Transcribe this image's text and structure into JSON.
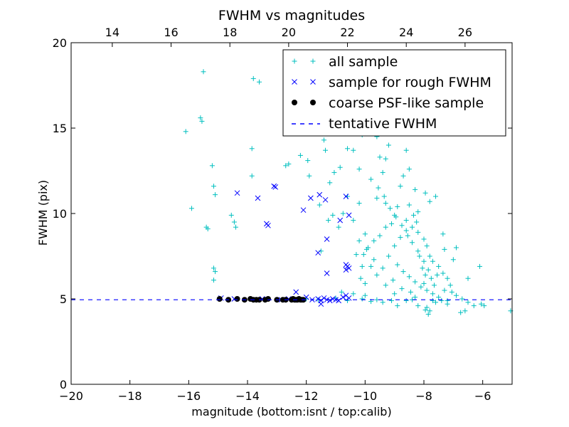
{
  "chart_data": {
    "type": "scatter",
    "title": "FWHM vs magnitudes",
    "xlabel": "magnitude (bottom:isnt / top:calib)",
    "ylabel": "FWHM (pix)",
    "xlim": [
      -20,
      -5
    ],
    "ylim": [
      0,
      20
    ],
    "top_xlim": [
      12.6,
      27.6
    ],
    "x_ticks": [
      "−20",
      "−18",
      "−16",
      "−14",
      "−12",
      "−10",
      "−8",
      "−6"
    ],
    "x_tick_values": [
      -20,
      -18,
      -16,
      -14,
      -12,
      -10,
      -8,
      -6
    ],
    "y_ticks": [
      "0",
      "5",
      "10",
      "15",
      "20"
    ],
    "y_tick_values": [
      0,
      5,
      10,
      15,
      20
    ],
    "top_x_ticks": [
      "14",
      "16",
      "18",
      "20",
      "22",
      "24",
      "26"
    ],
    "top_x_tick_values": [
      14,
      16,
      18,
      20,
      22,
      24,
      26
    ],
    "grid": false,
    "legend_position": "top-right",
    "tentative_fwhm": 4.95,
    "series": [
      {
        "name": "all sample",
        "marker": "+",
        "color": "#00bfbf",
        "points": [
          [
            -15.5,
            18.3
          ],
          [
            -15.6,
            15.6
          ],
          [
            -15.55,
            15.4
          ],
          [
            -16.1,
            14.8
          ],
          [
            -15.2,
            12.8
          ],
          [
            -15.15,
            11.6
          ],
          [
            -15.1,
            11.1
          ],
          [
            -15.9,
            10.3
          ],
          [
            -15.4,
            9.2
          ],
          [
            -15.35,
            9.1
          ],
          [
            -15.15,
            6.8
          ],
          [
            -15.1,
            6.6
          ],
          [
            -15.15,
            6.1
          ],
          [
            -14.55,
            9.9
          ],
          [
            -14.45,
            9.5
          ],
          [
            -14.4,
            9.2
          ],
          [
            -13.8,
            17.9
          ],
          [
            -13.6,
            17.7
          ],
          [
            -13.85,
            13.8
          ],
          [
            -13.85,
            12.2
          ],
          [
            -12.7,
            12.8
          ],
          [
            -12.6,
            12.9
          ],
          [
            -12.2,
            13.4
          ],
          [
            -11.95,
            13.1
          ],
          [
            -11.9,
            12.2
          ],
          [
            -11.55,
            10.5
          ],
          [
            -11.4,
            14.3
          ],
          [
            -11.35,
            13.7
          ],
          [
            -11.2,
            11.8
          ],
          [
            -11.05,
            12.4
          ],
          [
            -10.85,
            12.7
          ],
          [
            -10.6,
            13.8
          ],
          [
            -10.4,
            13.7
          ],
          [
            -10.2,
            12.6
          ],
          [
            -10.1,
            14.6
          ],
          [
            -10.2,
            10.6
          ],
          [
            -10.4,
            9.6
          ],
          [
            -10.6,
            11.0
          ],
          [
            -10.75,
            10.0
          ],
          [
            -10.9,
            9.2
          ],
          [
            -11.25,
            9.6
          ],
          [
            -11.5,
            7.8
          ],
          [
            -10.3,
            7.6
          ],
          [
            -10.1,
            6.9
          ],
          [
            -10.15,
            6.2
          ],
          [
            -10.0,
            5.9
          ],
          [
            -11.1,
            9.9
          ],
          [
            -9.8,
            12.0
          ],
          [
            -9.5,
            13.3
          ],
          [
            -9.3,
            13.2
          ],
          [
            -9.2,
            14.0
          ],
          [
            -9.6,
            14.5
          ],
          [
            -9.4,
            12.4
          ],
          [
            -8.6,
            13.7
          ],
          [
            -8.7,
            12.2
          ],
          [
            -8.5,
            12.6
          ],
          [
            -8.3,
            11.4
          ],
          [
            -7.95,
            11.2
          ],
          [
            -7.6,
            11.0
          ],
          [
            -8.8,
            11.6
          ],
          [
            -8.9,
            10.4
          ],
          [
            -9.0,
            9.9
          ],
          [
            -9.1,
            9.4
          ],
          [
            -9.3,
            9.2
          ],
          [
            -9.5,
            8.7
          ],
          [
            -9.7,
            8.4
          ],
          [
            -9.9,
            8.0
          ],
          [
            -10.05,
            7.6
          ],
          [
            -8.6,
            9.6
          ],
          [
            -8.4,
            9.2
          ],
          [
            -8.2,
            8.9
          ],
          [
            -8.0,
            8.5
          ],
          [
            -7.9,
            8.1
          ],
          [
            -7.8,
            7.5
          ],
          [
            -7.7,
            7.2
          ],
          [
            -7.5,
            6.9
          ],
          [
            -7.35,
            6.5
          ],
          [
            -7.2,
            6.2
          ],
          [
            -7.1,
            5.8
          ],
          [
            -7.05,
            5.4
          ],
          [
            -6.9,
            5.2
          ],
          [
            -6.7,
            5.0
          ],
          [
            -6.5,
            4.8
          ],
          [
            -6.3,
            4.6
          ],
          [
            -6.05,
            4.7
          ],
          [
            -5.95,
            4.6
          ],
          [
            -6.6,
            4.3
          ],
          [
            -6.75,
            4.2
          ],
          [
            -5.05,
            4.3
          ],
          [
            -6.1,
            6.9
          ],
          [
            -6.5,
            6.2
          ],
          [
            -7.0,
            7.3
          ],
          [
            -7.3,
            7.9
          ],
          [
            -6.9,
            8.0
          ],
          [
            -7.35,
            8.8
          ],
          [
            -7.8,
            10.7
          ],
          [
            -8.2,
            10.1
          ],
          [
            -9.3,
            10.6
          ],
          [
            -9.6,
            10.9
          ],
          [
            -10.0,
            8.8
          ],
          [
            -8.9,
            7.0
          ],
          [
            -8.7,
            6.6
          ],
          [
            -8.5,
            6.3
          ],
          [
            -8.3,
            6.0
          ],
          [
            -8.1,
            5.7
          ],
          [
            -7.9,
            5.5
          ],
          [
            -7.7,
            5.3
          ],
          [
            -7.5,
            5.1
          ],
          [
            -7.4,
            4.9
          ],
          [
            -7.6,
            4.8
          ],
          [
            -7.9,
            4.5
          ],
          [
            -8.2,
            4.6
          ],
          [
            -8.6,
            4.9
          ],
          [
            -9.0,
            5.3
          ],
          [
            -9.3,
            5.8
          ],
          [
            -9.6,
            6.4
          ],
          [
            -9.8,
            6.9
          ],
          [
            -9.2,
            7.5
          ],
          [
            -9.0,
            8.1
          ],
          [
            -8.8,
            8.6
          ],
          [
            -8.6,
            9.0
          ],
          [
            -8.4,
            8.3
          ],
          [
            -8.2,
            7.8
          ],
          [
            -8.0,
            7.2
          ],
          [
            -7.85,
            6.7
          ],
          [
            -7.75,
            6.2
          ],
          [
            -7.65,
            5.8
          ],
          [
            -8.45,
            5.4
          ],
          [
            -8.75,
            5.6
          ],
          [
            -9.05,
            6.1
          ],
          [
            -9.4,
            6.8
          ],
          [
            -9.7,
            7.3
          ],
          [
            -9.95,
            7.9
          ],
          [
            -10.2,
            8.4
          ],
          [
            -9.1,
            4.9
          ],
          [
            -9.6,
            4.95
          ],
          [
            -10.1,
            5.0
          ],
          [
            -10.6,
            4.9
          ],
          [
            -11.0,
            5.05
          ],
          [
            -11.6,
            4.95
          ],
          [
            -12.0,
            5.0
          ],
          [
            -9.8,
            4.85
          ],
          [
            -8.4,
            4.95
          ],
          [
            -7.7,
            4.9
          ],
          [
            -7.2,
            4.7
          ],
          [
            -7.8,
            4.3
          ],
          [
            -7.95,
            4.35
          ],
          [
            -7.85,
            4.1
          ],
          [
            -8.9,
            4.6
          ],
          [
            -9.4,
            4.8
          ],
          [
            -10.0,
            5.2
          ],
          [
            -10.4,
            5.3
          ],
          [
            -10.8,
            5.4
          ],
          [
            -8.3,
            5.1
          ],
          [
            -8.0,
            5.9
          ],
          [
            -7.55,
            6.4
          ],
          [
            -7.3,
            5.5
          ],
          [
            -7.2,
            4.9
          ],
          [
            -8.55,
            8.7
          ],
          [
            -8.75,
            9.3
          ],
          [
            -8.95,
            9.8
          ],
          [
            -9.15,
            10.3
          ],
          [
            -9.35,
            11.0
          ],
          [
            -9.55,
            11.5
          ],
          [
            -8.5,
            10.5
          ],
          [
            -8.35,
            9.9
          ],
          [
            -8.25,
            9.5
          ],
          [
            -8.15,
            7.5
          ],
          [
            -8.05,
            6.8
          ],
          [
            -7.95,
            6.4
          ]
        ]
      },
      {
        "name": "sample for rough FWHM",
        "marker": "x",
        "color": "#0000ff",
        "points": [
          [
            -14.35,
            11.2
          ],
          [
            -13.65,
            10.9
          ],
          [
            -13.1,
            11.6
          ],
          [
            -13.05,
            11.55
          ],
          [
            -13.35,
            9.4
          ],
          [
            -13.3,
            9.3
          ],
          [
            -11.85,
            10.9
          ],
          [
            -11.55,
            11.1
          ],
          [
            -11.35,
            10.8
          ],
          [
            -12.1,
            10.2
          ],
          [
            -11.3,
            8.5
          ],
          [
            -11.6,
            7.7
          ],
          [
            -11.3,
            6.5
          ],
          [
            -10.65,
            11.0
          ],
          [
            -10.55,
            9.9
          ],
          [
            -10.85,
            9.6
          ],
          [
            -10.65,
            7.0
          ],
          [
            -10.6,
            6.9
          ],
          [
            -10.55,
            6.8
          ],
          [
            -10.65,
            6.7
          ],
          [
            -12.35,
            5.4
          ],
          [
            -12.0,
            5.1
          ],
          [
            -11.8,
            4.95
          ],
          [
            -11.6,
            5.0
          ],
          [
            -11.5,
            4.9
          ],
          [
            -11.4,
            5.05
          ],
          [
            -11.3,
            4.95
          ],
          [
            -11.2,
            4.9
          ],
          [
            -11.1,
            5.0
          ],
          [
            -11.0,
            4.95
          ],
          [
            -10.9,
            4.9
          ],
          [
            -10.75,
            5.1
          ],
          [
            -10.65,
            5.2
          ],
          [
            -10.55,
            5.05
          ],
          [
            -11.5,
            4.7
          ],
          [
            -14.9,
            5.05
          ],
          [
            -14.45,
            5.0
          ],
          [
            -13.5,
            5.0
          ],
          [
            -12.85,
            4.95
          ],
          [
            -12.6,
            5.0
          ]
        ]
      },
      {
        "name": "coarse PSF-like sample",
        "marker": "o",
        "color": "#000000",
        "points": [
          [
            -14.95,
            5.0
          ],
          [
            -14.65,
            4.95
          ],
          [
            -14.35,
            5.0
          ],
          [
            -14.1,
            4.95
          ],
          [
            -13.9,
            5.0
          ],
          [
            -13.8,
            4.95
          ],
          [
            -13.7,
            4.95
          ],
          [
            -13.6,
            4.95
          ],
          [
            -13.4,
            4.95
          ],
          [
            -13.3,
            5.0
          ],
          [
            -13.0,
            4.95
          ],
          [
            -12.8,
            4.95
          ],
          [
            -12.7,
            4.95
          ],
          [
            -12.5,
            4.95
          ],
          [
            -12.45,
            5.0
          ],
          [
            -12.4,
            4.95
          ],
          [
            -12.35,
            4.95
          ],
          [
            -12.3,
            4.95
          ],
          [
            -12.25,
            5.0
          ],
          [
            -12.2,
            4.95
          ],
          [
            -12.15,
            4.95
          ],
          [
            -12.1,
            4.95
          ]
        ]
      }
    ],
    "legend_dash_label": "tentative FWHM"
  }
}
